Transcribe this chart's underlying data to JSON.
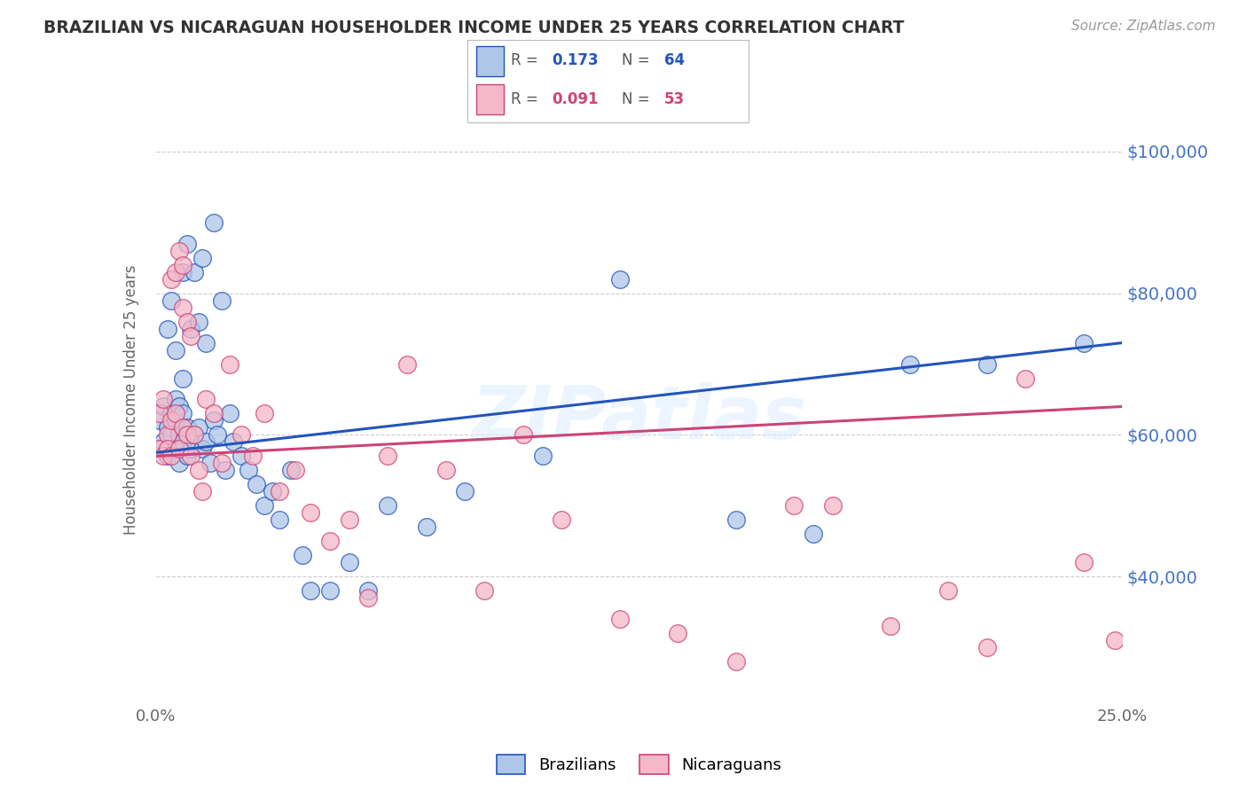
{
  "title": "BRAZILIAN VS NICARAGUAN HOUSEHOLDER INCOME UNDER 25 YEARS CORRELATION CHART",
  "source": "Source: ZipAtlas.com",
  "ylabel": "Householder Income Under 25 years",
  "xmin": 0.0,
  "xmax": 0.25,
  "ymin": 22000,
  "ymax": 108000,
  "yticks": [
    40000,
    60000,
    80000,
    100000
  ],
  "ytick_labels": [
    "$40,000",
    "$60,000",
    "$80,000",
    "$100,000"
  ],
  "grid_color": "#cccccc",
  "background_color": "#ffffff",
  "brazilian_color": "#aec6e8",
  "nicaraguan_color": "#f5b8c8",
  "trend_blue": "#2255bb",
  "trend_pink": "#cc4477",
  "R_blue": 0.173,
  "N_blue": 64,
  "R_pink": 0.091,
  "N_pink": 53,
  "legend_label_blue": "Brazilians",
  "legend_label_pink": "Nicaraguans",
  "watermark": "ZIPatlas",
  "blue_x": [
    0.001,
    0.001,
    0.002,
    0.002,
    0.003,
    0.003,
    0.003,
    0.004,
    0.004,
    0.004,
    0.005,
    0.005,
    0.005,
    0.005,
    0.006,
    0.006,
    0.006,
    0.007,
    0.007,
    0.007,
    0.007,
    0.008,
    0.008,
    0.008,
    0.009,
    0.009,
    0.01,
    0.01,
    0.011,
    0.011,
    0.012,
    0.012,
    0.013,
    0.013,
    0.014,
    0.015,
    0.015,
    0.016,
    0.017,
    0.018,
    0.019,
    0.02,
    0.022,
    0.024,
    0.026,
    0.028,
    0.03,
    0.032,
    0.035,
    0.038,
    0.04,
    0.045,
    0.05,
    0.055,
    0.06,
    0.07,
    0.08,
    0.1,
    0.12,
    0.15,
    0.17,
    0.195,
    0.215,
    0.24
  ],
  "blue_y": [
    62000,
    58000,
    64000,
    59000,
    61000,
    57000,
    75000,
    60000,
    63000,
    79000,
    58000,
    62000,
    65000,
    72000,
    56000,
    60000,
    64000,
    59000,
    63000,
    68000,
    83000,
    57000,
    61000,
    87000,
    58000,
    75000,
    60000,
    83000,
    61000,
    76000,
    58000,
    85000,
    59000,
    73000,
    56000,
    62000,
    90000,
    60000,
    79000,
    55000,
    63000,
    59000,
    57000,
    55000,
    53000,
    50000,
    52000,
    48000,
    55000,
    43000,
    38000,
    38000,
    42000,
    38000,
    50000,
    47000,
    52000,
    57000,
    82000,
    48000,
    46000,
    70000,
    70000,
    73000
  ],
  "pink_x": [
    0.001,
    0.001,
    0.002,
    0.002,
    0.003,
    0.003,
    0.004,
    0.004,
    0.004,
    0.005,
    0.005,
    0.006,
    0.006,
    0.007,
    0.007,
    0.007,
    0.008,
    0.008,
    0.009,
    0.009,
    0.01,
    0.011,
    0.012,
    0.013,
    0.015,
    0.017,
    0.019,
    0.022,
    0.025,
    0.028,
    0.032,
    0.036,
    0.04,
    0.045,
    0.05,
    0.055,
    0.06,
    0.065,
    0.075,
    0.085,
    0.095,
    0.105,
    0.12,
    0.135,
    0.15,
    0.165,
    0.175,
    0.19,
    0.205,
    0.215,
    0.225,
    0.24,
    0.248
  ],
  "pink_y": [
    58000,
    63000,
    57000,
    65000,
    60000,
    58000,
    62000,
    57000,
    82000,
    63000,
    83000,
    58000,
    86000,
    61000,
    78000,
    84000,
    60000,
    76000,
    57000,
    74000,
    60000,
    55000,
    52000,
    65000,
    63000,
    56000,
    70000,
    60000,
    57000,
    63000,
    52000,
    55000,
    49000,
    45000,
    48000,
    37000,
    57000,
    70000,
    55000,
    38000,
    60000,
    48000,
    34000,
    32000,
    28000,
    50000,
    50000,
    33000,
    38000,
    30000,
    68000,
    42000,
    31000
  ],
  "trend_blue_x0": 0.0,
  "trend_blue_y0": 57500,
  "trend_blue_x1": 0.25,
  "trend_blue_y1": 73000,
  "trend_pink_x0": 0.0,
  "trend_pink_y0": 57000,
  "trend_pink_x1": 0.25,
  "trend_pink_y1": 64000
}
